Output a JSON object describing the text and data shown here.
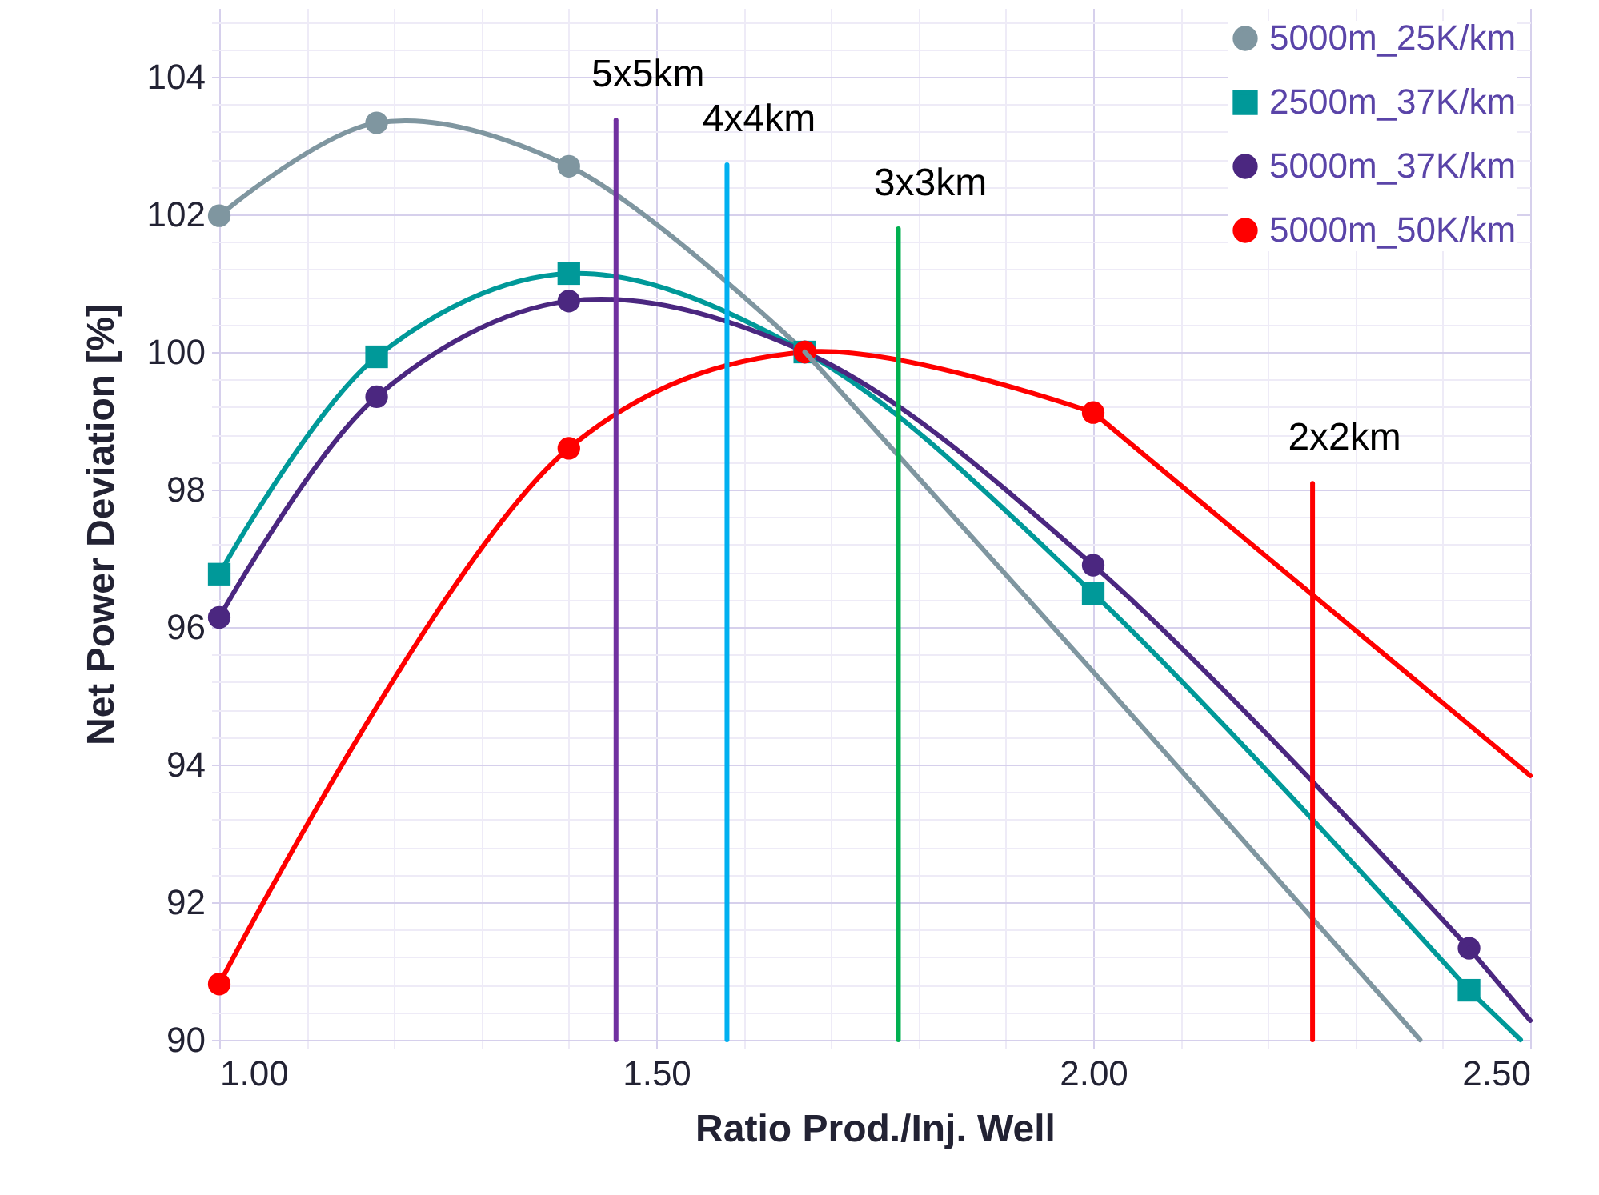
{
  "chart_data": {
    "type": "line",
    "xlabel": "Ratio Prod./Inj. Well",
    "ylabel": "Net Power Deviation [%]",
    "xlim": [
      1.0,
      2.5
    ],
    "ylim": [
      90,
      105
    ],
    "xticks": [
      {
        "value": 1.0,
        "label": "1.00"
      },
      {
        "value": 1.1,
        "label": null
      },
      {
        "value": 1.2,
        "label": null
      },
      {
        "value": 1.3,
        "label": null
      },
      {
        "value": 1.4,
        "label": null
      },
      {
        "value": 1.5,
        "label": "1.50"
      },
      {
        "value": 1.6,
        "label": null
      },
      {
        "value": 1.7,
        "label": null
      },
      {
        "value": 1.8,
        "label": null
      },
      {
        "value": 1.9,
        "label": null
      },
      {
        "value": 2.0,
        "label": "2.00"
      },
      {
        "value": 2.1,
        "label": null
      },
      {
        "value": 2.2,
        "label": null
      },
      {
        "value": 2.3,
        "label": null
      },
      {
        "value": 2.4,
        "label": null
      },
      {
        "value": 2.5,
        "label": "2.50"
      }
    ],
    "yticks": [
      90,
      {
        "value": 90.4,
        "label": null
      },
      {
        "value": 90.8,
        "label": null
      },
      {
        "value": 91.2,
        "label": null
      },
      {
        "value": 91.6,
        "label": null
      },
      92,
      {
        "value": 92.4,
        "label": null
      },
      {
        "value": 92.8,
        "label": null
      },
      {
        "value": 93.2,
        "label": null
      },
      {
        "value": 93.6,
        "label": null
      },
      94,
      {
        "value": 94.4,
        "label": null
      },
      {
        "value": 94.8,
        "label": null
      },
      {
        "value": 95.2,
        "label": null
      },
      {
        "value": 95.6,
        "label": null
      },
      96,
      {
        "value": 96.4,
        "label": null
      },
      {
        "value": 96.8,
        "label": null
      },
      {
        "value": 97.2,
        "label": null
      },
      {
        "value": 97.6,
        "label": null
      },
      98,
      {
        "value": 98.4,
        "label": null
      },
      {
        "value": 98.8,
        "label": null
      },
      {
        "value": 99.2,
        "label": null
      },
      {
        "value": 99.6,
        "label": null
      },
      100,
      {
        "value": 100.4,
        "label": null
      },
      {
        "value": 100.8,
        "label": null
      },
      {
        "value": 101.2,
        "label": null
      },
      {
        "value": 101.6,
        "label": null
      },
      102,
      {
        "value": 102.4,
        "label": null
      },
      {
        "value": 102.8,
        "label": null
      },
      {
        "value": 103.2,
        "label": null
      },
      {
        "value": 103.6,
        "label": null
      },
      104,
      {
        "value": 104.4,
        "label": null
      },
      {
        "value": 104.8,
        "label": null
      }
    ],
    "grid": true,
    "legend": "top right",
    "marker": "circle",
    "line_style": "solid",
    "series": [
      {
        "name": "5000m_25K/km",
        "color": "#7f96a0",
        "x": [
          1.0,
          1.18,
          1.4,
          1.67
        ],
        "values": [
          101.98,
          103.33,
          102.7,
          100.0
        ]
      },
      {
        "name": "2500m_37K/km",
        "color": "#009999",
        "marker": "square",
        "x": [
          1.0,
          1.18,
          1.4,
          1.67,
          2.0,
          2.43
        ],
        "values": [
          96.77,
          99.93,
          101.14,
          100.0,
          96.49,
          90.72
        ]
      },
      {
        "name": "5000m_37K/km",
        "color": "#4b2780",
        "x": [
          1.0,
          1.18,
          1.4,
          1.67,
          2.0,
          2.43
        ],
        "values": [
          96.14,
          99.35,
          100.74,
          100.0,
          96.9,
          91.33
        ]
      },
      {
        "name": "5000m_50K/km",
        "color": "#ff0000",
        "x": [
          1.0,
          1.4,
          1.67,
          2.0
        ],
        "values": [
          90.81,
          98.6,
          100.0,
          99.12
        ]
      },
      {
        "color": "#7f96a0",
        "marker": "none",
        "x": [
          1.67,
          2.0,
          2.374
        ],
        "values": [
          100.0,
          95.35,
          90.0
        ]
      },
      {
        "color": "#009999",
        "marker": "none",
        "x": [
          2.43,
          2.489
        ],
        "values": [
          90.72,
          90.0
        ]
      },
      {
        "color": "#4b2780",
        "marker": "none",
        "x": [
          2.43,
          2.5
        ],
        "values": [
          91.33,
          90.28
        ]
      },
      {
        "color": "#ff0000",
        "marker": "none",
        "x": [
          2.0,
          2.5
        ],
        "values": [
          99.12,
          93.84
        ]
      },
      {
        "color": "#7030a0",
        "marker": "none",
        "x": [
          1.454,
          1.454
        ],
        "values": [
          90.0,
          103.37
        ]
      },
      {
        "color": "#00b0f0",
        "marker": "none",
        "x": [
          1.581,
          1.581
        ],
        "values": [
          90.0,
          102.72
        ]
      },
      {
        "color": "#00b050",
        "marker": "none",
        "x": [
          1.777,
          1.777
        ],
        "values": [
          90.0,
          101.79
        ]
      },
      {
        "color": "#ff0000",
        "marker": "none",
        "x": [
          2.251,
          2.251
        ],
        "values": [
          90.0,
          98.09
        ]
      }
    ],
    "annotations": [
      {
        "text": "5x5km",
        "x": 1.454,
        "y": 103.37
      },
      {
        "text": "4x4km",
        "x": 1.581,
        "y": 102.72
      },
      {
        "text": "3x3km",
        "x": 1.777,
        "y": 101.79
      },
      {
        "text": "2x2km",
        "x": 2.251,
        "y": 98.09
      }
    ]
  }
}
